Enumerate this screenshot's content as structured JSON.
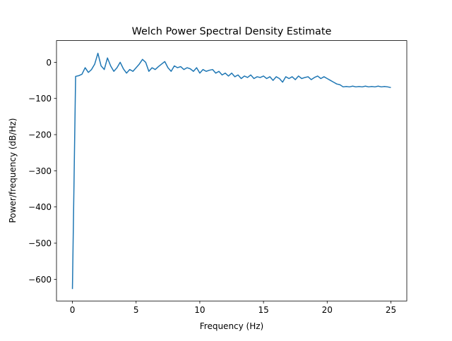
{
  "chart_data": {
    "type": "line",
    "title": "Welch Power Spectral Density Estimate",
    "x_label": "Frequency (Hz)",
    "y_label": "Power/frequency (dB/Hz)",
    "xlim": [
      -1.25,
      26.25
    ],
    "xticks": [
      0,
      5,
      10,
      15,
      20,
      25
    ],
    "ylim": [
      -660,
      60
    ],
    "yticks": [
      {
        "value": -600,
        "label": "−600"
      },
      {
        "value": -500,
        "label": "−500"
      },
      {
        "value": -400,
        "label": "−400"
      },
      {
        "value": -300,
        "label": "−300"
      },
      {
        "value": -200,
        "label": "−200"
      },
      {
        "value": -100,
        "label": "−100"
      },
      0
    ],
    "series": [
      {
        "color": "#1f77b4",
        "x": [
          0,
          0.25,
          0.5,
          0.75,
          1,
          1.25,
          1.5,
          1.75,
          2,
          2.25,
          2.5,
          2.75,
          3,
          3.25,
          3.5,
          3.75,
          4,
          4.25,
          4.5,
          4.75,
          5,
          5.25,
          5.5,
          5.75,
          6,
          6.25,
          6.5,
          6.75,
          7,
          7.25,
          7.5,
          7.75,
          8,
          8.25,
          8.5,
          8.75,
          9,
          9.25,
          9.5,
          9.75,
          10,
          10.25,
          10.5,
          10.75,
          11,
          11.25,
          11.5,
          11.75,
          12,
          12.25,
          12.5,
          12.75,
          13,
          13.25,
          13.5,
          13.75,
          14,
          14.25,
          14.5,
          14.75,
          15,
          15.25,
          15.5,
          15.75,
          16,
          16.25,
          16.5,
          16.75,
          17,
          17.25,
          17.5,
          17.75,
          18,
          18.25,
          18.5,
          18.75,
          19,
          19.25,
          19.5,
          19.75,
          20,
          20.25,
          20.5,
          20.75,
          21,
          21.25,
          21.5,
          21.75,
          22,
          22.25,
          22.5,
          22.75,
          23,
          23.25,
          23.5,
          23.75,
          24,
          24.25,
          24.5,
          24.75,
          25
        ],
        "values": [
          -627,
          -39,
          -37,
          -33,
          -15,
          -28,
          -20,
          -5,
          25,
          -10,
          -20,
          12,
          -10,
          -25,
          -15,
          0,
          -18,
          -30,
          -20,
          -25,
          -15,
          -5,
          8,
          0,
          -25,
          -15,
          -20,
          -12,
          -5,
          2,
          -15,
          -25,
          -10,
          -15,
          -12,
          -20,
          -15,
          -18,
          -25,
          -15,
          -30,
          -20,
          -25,
          -22,
          -20,
          -30,
          -25,
          -35,
          -30,
          -38,
          -30,
          -40,
          -35,
          -45,
          -38,
          -42,
          -35,
          -45,
          -40,
          -42,
          -38,
          -45,
          -40,
          -50,
          -40,
          -45,
          -55,
          -40,
          -45,
          -40,
          -48,
          -38,
          -45,
          -42,
          -40,
          -48,
          -42,
          -38,
          -45,
          -40,
          -45,
          -50,
          -55,
          -60,
          -62,
          -68,
          -67,
          -68,
          -66,
          -68,
          -67,
          -68,
          -66,
          -68,
          -67,
          -68,
          -66,
          -68,
          -67,
          -68,
          -70
        ]
      }
    ]
  }
}
